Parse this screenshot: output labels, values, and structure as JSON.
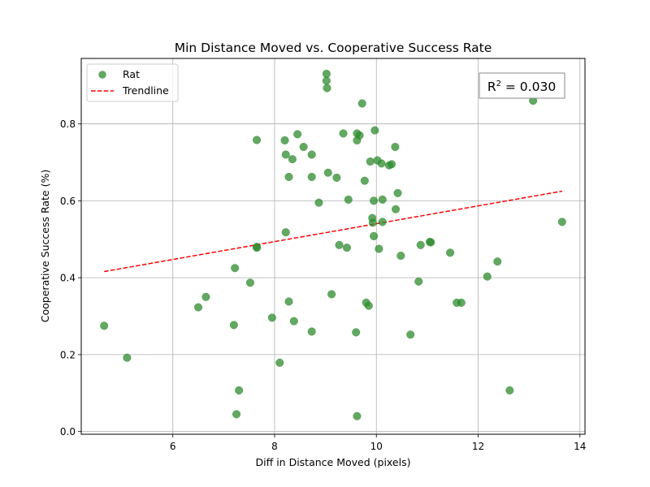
{
  "chart_data": {
    "type": "scatter",
    "title": "Min Distance Moved vs. Cooperative Success Rate",
    "xlabel": "Diff in Distance Moved (pixels)",
    "ylabel": "Cooperative Success Rate (%)",
    "xlim": [
      4.2,
      14.1
    ],
    "ylim": [
      -0.007,
      0.97
    ],
    "xticks": [
      6,
      8,
      10,
      12,
      14
    ],
    "yticks": [
      0.0,
      0.2,
      0.4,
      0.6,
      0.8
    ],
    "xtick_labels": [
      "6",
      "8",
      "10",
      "12",
      "14"
    ],
    "ytick_labels": [
      "0.0",
      "0.2",
      "0.4",
      "0.6",
      "0.8"
    ],
    "grid": true,
    "legend_position": "top-left",
    "annotation": {
      "prefix": "R",
      "superscript": "2",
      "suffix": " = 0.030",
      "position": "top-right"
    },
    "series": [
      {
        "name": "Rat",
        "color": "#2e8b2e",
        "points": [
          [
            4.65,
            0.275
          ],
          [
            5.1,
            0.192
          ],
          [
            6.5,
            0.323
          ],
          [
            6.65,
            0.35
          ],
          [
            7.2,
            0.277
          ],
          [
            7.22,
            0.425
          ],
          [
            7.25,
            0.045
          ],
          [
            7.3,
            0.107
          ],
          [
            7.52,
            0.387
          ],
          [
            7.65,
            0.758
          ],
          [
            7.65,
            0.48
          ],
          [
            7.65,
            0.478
          ],
          [
            7.95,
            0.296
          ],
          [
            8.1,
            0.179
          ],
          [
            8.2,
            0.757
          ],
          [
            8.22,
            0.72
          ],
          [
            8.22,
            0.518
          ],
          [
            8.28,
            0.662
          ],
          [
            8.28,
            0.338
          ],
          [
            8.35,
            0.708
          ],
          [
            8.38,
            0.287
          ],
          [
            8.45,
            0.773
          ],
          [
            8.57,
            0.74
          ],
          [
            8.73,
            0.72
          ],
          [
            8.73,
            0.662
          ],
          [
            8.73,
            0.26
          ],
          [
            8.87,
            0.595
          ],
          [
            9.02,
            0.93
          ],
          [
            9.02,
            0.912
          ],
          [
            9.03,
            0.893
          ],
          [
            9.05,
            0.673
          ],
          [
            9.12,
            0.357
          ],
          [
            9.22,
            0.66
          ],
          [
            9.27,
            0.485
          ],
          [
            9.35,
            0.775
          ],
          [
            9.42,
            0.478
          ],
          [
            9.45,
            0.603
          ],
          [
            9.6,
            0.258
          ],
          [
            9.62,
            0.775
          ],
          [
            9.62,
            0.757
          ],
          [
            9.62,
            0.04
          ],
          [
            9.67,
            0.77
          ],
          [
            9.72,
            0.853
          ],
          [
            9.77,
            0.652
          ],
          [
            9.8,
            0.335
          ],
          [
            9.85,
            0.327
          ],
          [
            9.88,
            0.702
          ],
          [
            9.92,
            0.555
          ],
          [
            9.93,
            0.543
          ],
          [
            9.95,
            0.6
          ],
          [
            9.95,
            0.508
          ],
          [
            9.97,
            0.783
          ],
          [
            10.02,
            0.705
          ],
          [
            10.05,
            0.475
          ],
          [
            10.1,
            0.697
          ],
          [
            10.12,
            0.545
          ],
          [
            10.12,
            0.603
          ],
          [
            10.25,
            0.692
          ],
          [
            10.3,
            0.695
          ],
          [
            10.37,
            0.74
          ],
          [
            10.38,
            0.578
          ],
          [
            10.42,
            0.62
          ],
          [
            10.48,
            0.457
          ],
          [
            10.67,
            0.252
          ],
          [
            10.83,
            0.39
          ],
          [
            10.87,
            0.485
          ],
          [
            11.05,
            0.493
          ],
          [
            11.07,
            0.492
          ],
          [
            11.45,
            0.465
          ],
          [
            11.58,
            0.335
          ],
          [
            11.67,
            0.335
          ],
          [
            12.18,
            0.403
          ],
          [
            12.38,
            0.442
          ],
          [
            12.62,
            0.107
          ],
          [
            13.08,
            0.86
          ],
          [
            13.65,
            0.545
          ]
        ]
      },
      {
        "name": "Trendline",
        "color": "#ff0000",
        "style": "dashed",
        "line": [
          [
            4.65,
            0.416
          ],
          [
            13.65,
            0.625
          ]
        ]
      }
    ]
  }
}
